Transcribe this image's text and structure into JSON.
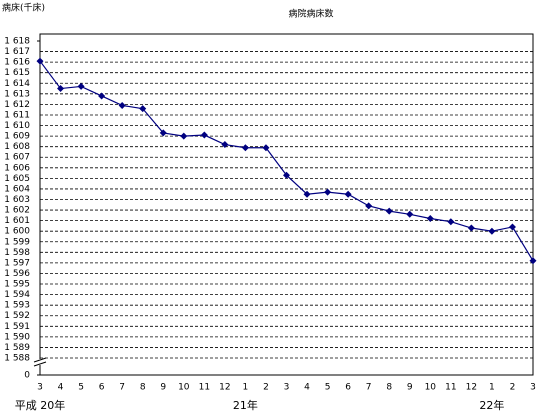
{
  "chart_data": {
    "type": "line",
    "title": "病院病床数",
    "y_label": "病床(千床)",
    "categories": [
      "3",
      "4",
      "5",
      "6",
      "7",
      "8",
      "9",
      "10",
      "11",
      "12",
      "1",
      "2",
      "3",
      "4",
      "5",
      "6",
      "7",
      "8",
      "9",
      "10",
      "11",
      "12",
      "1",
      "2",
      "3"
    ],
    "year_labels": [
      {
        "index": 0,
        "label": "平成 20年"
      },
      {
        "index": 10,
        "label": "21年"
      },
      {
        "index": 22,
        "label": "22年"
      }
    ],
    "series": [
      {
        "name": "病院病床数",
        "color": "#000080",
        "values": [
          1616.1,
          1613.5,
          1613.7,
          1612.8,
          1611.9,
          1611.6,
          1609.3,
          1609.0,
          1609.1,
          1608.2,
          1607.9,
          1607.9,
          1605.3,
          1603.5,
          1603.7,
          1603.5,
          1602.4,
          1601.9,
          1601.6,
          1601.2,
          1600.9,
          1600.3,
          1600.0,
          1600.4,
          1597.2
        ]
      }
    ],
    "ylim": [
      0,
      1618
    ],
    "y_break": [
      0,
      1588
    ],
    "yticks": [
      0,
      {
        "value": 1588,
        "label": "1 588"
      },
      {
        "value": 1589,
        "label": "1 589"
      },
      {
        "value": 1590,
        "label": "1 590"
      },
      {
        "value": 1591,
        "label": "1 591"
      },
      {
        "value": 1592,
        "label": "1 592"
      },
      {
        "value": 1593,
        "label": "1 593"
      },
      {
        "value": 1594,
        "label": "1 594"
      },
      {
        "value": 1595,
        "label": "1 595"
      },
      {
        "value": 1596,
        "label": "1 596"
      },
      {
        "value": 1597,
        "label": "1 597"
      },
      {
        "value": 1598,
        "label": "1 598"
      },
      {
        "value": 1599,
        "label": "1 599"
      },
      {
        "value": 1600,
        "label": "1 600"
      },
      {
        "value": 1601,
        "label": "1 601"
      },
      {
        "value": 1602,
        "label": "1 602"
      },
      {
        "value": 1603,
        "label": "1 603"
      },
      {
        "value": 1604,
        "label": "1 604"
      },
      {
        "value": 1605,
        "label": "1 605"
      },
      {
        "value": 1606,
        "label": "1 606"
      },
      {
        "value": 1607,
        "label": "1 607"
      },
      {
        "value": 1608,
        "label": "1 608"
      },
      {
        "value": 1609,
        "label": "1 609"
      },
      {
        "value": 1610,
        "label": "1 610"
      },
      {
        "value": 1611,
        "label": "1 611"
      },
      {
        "value": 1612,
        "label": "1 612"
      },
      {
        "value": 1613,
        "label": "1 613"
      },
      {
        "value": 1614,
        "label": "1 614"
      },
      {
        "value": 1615,
        "label": "1 615"
      },
      {
        "value": 1616,
        "label": "1 616"
      },
      {
        "value": 1617,
        "label": "1 617"
      },
      {
        "value": 1618,
        "label": "1 618"
      }
    ],
    "grid": true
  }
}
